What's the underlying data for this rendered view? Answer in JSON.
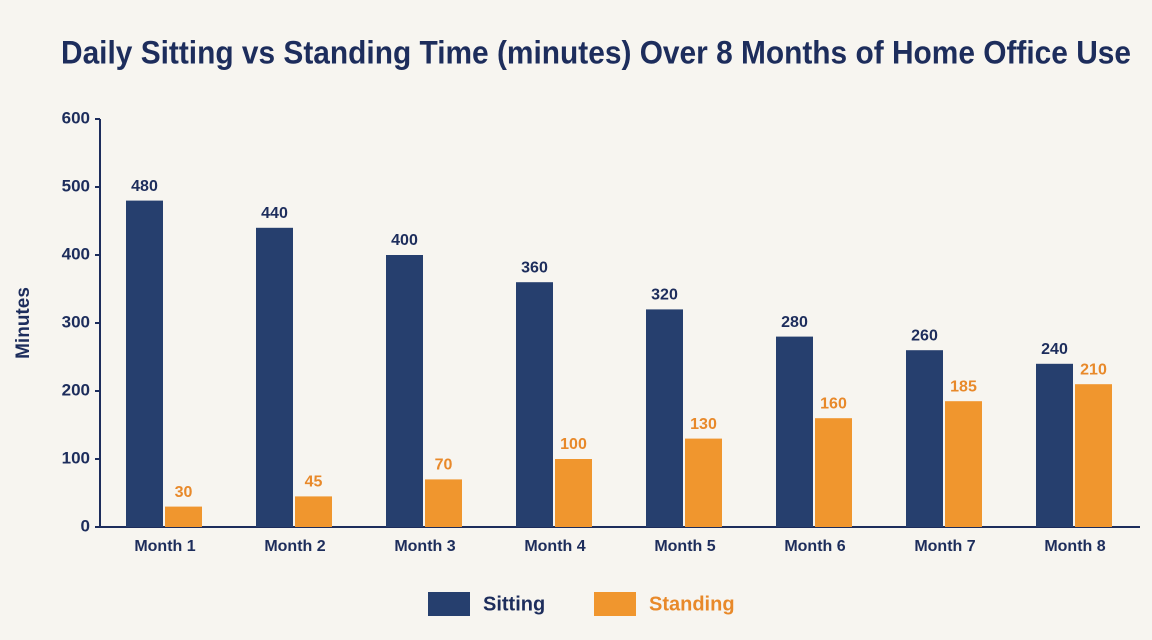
{
  "chart_data": {
    "type": "bar",
    "title": "Daily Sitting vs Standing Time (minutes) Over 8 Months of Home Office Use",
    "y_label": "Minutes",
    "categories": [
      "Month 1",
      "Month 2",
      "Month 3",
      "Month 4",
      "Month 5",
      "Month 6",
      "Month 7",
      "Month 8"
    ],
    "series": [
      {
        "name": "Sitting",
        "color": "#263f6e",
        "label_color": "#1d2d5c",
        "values": [
          480,
          440,
          400,
          360,
          320,
          280,
          260,
          240
        ]
      },
      {
        "name": "Standing",
        "color": "#f0962e",
        "label_color": "#e8892a",
        "values": [
          30,
          45,
          70,
          100,
          130,
          160,
          185,
          210
        ]
      }
    ],
    "ylim": [
      0,
      600
    ],
    "yticks": [
      0,
      100,
      200,
      300,
      400,
      500,
      600
    ],
    "grid": false,
    "legend": "bottom"
  }
}
